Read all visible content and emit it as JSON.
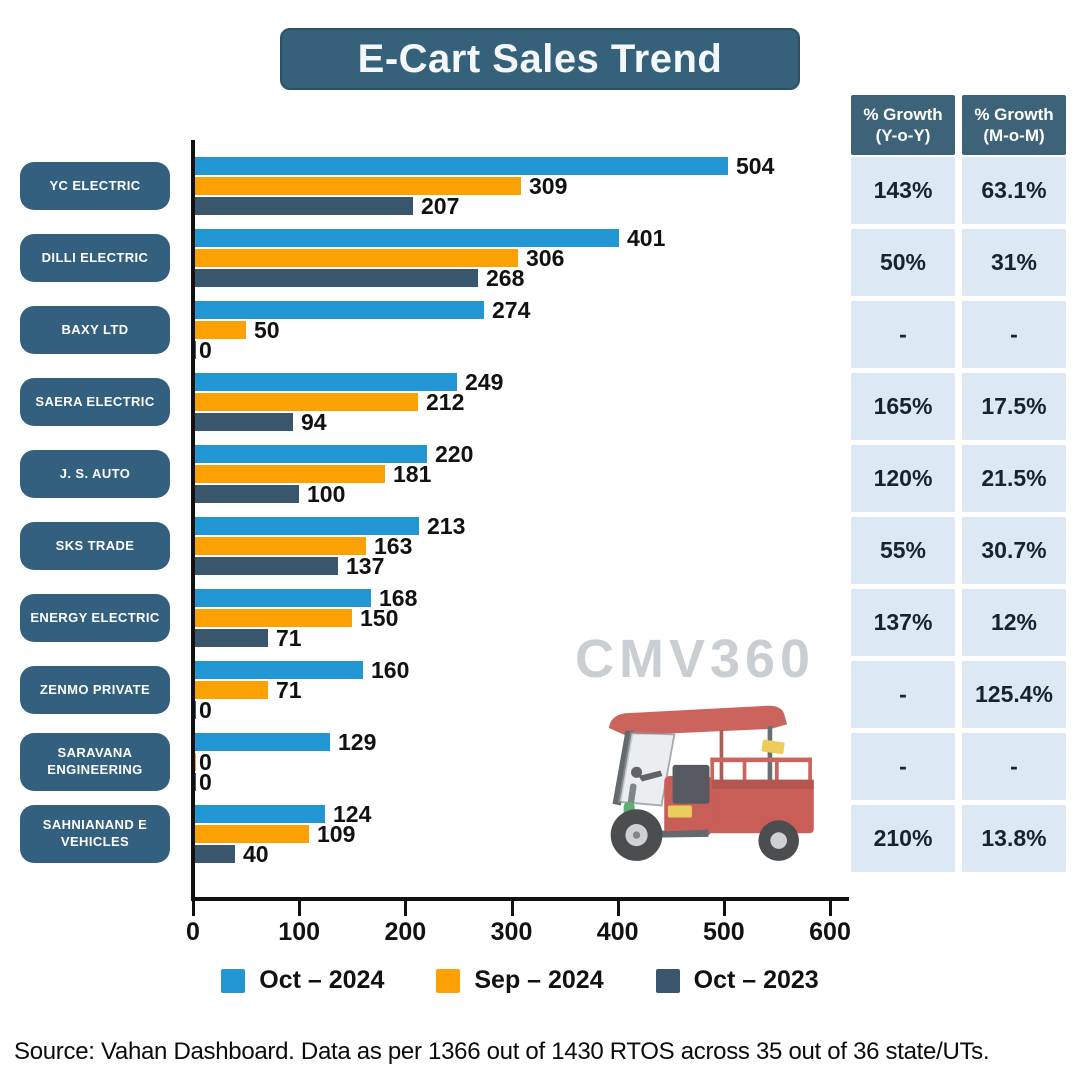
{
  "title": "E-Cart Sales Trend",
  "watermark": "CMV360",
  "source_text": "Source: Vahan Dashboard. Data as per 1366 out of 1430 RTOS across 35 out of 36 state/UTs.",
  "colors": {
    "title_bg": "#35617b",
    "pill_bg": "#33607e",
    "table_header_bg": "#3c6377",
    "table_cell_bg": "#dce9f5",
    "axis": "#111111",
    "watermark": "#c9ced3",
    "oct_2024_blue": "#2196d3",
    "sep_2024_orange": "#fba104",
    "oct_2023_slate": "#3a566c"
  },
  "table": {
    "header_yoy": "% Growth\n(Y-o-Y)",
    "header_mom": "% Growth\n(M-o-M)"
  },
  "chart_data": {
    "type": "bar",
    "orientation": "horizontal",
    "title": "E-Cart Sales Trend",
    "categories": [
      "YC ELECTRIC",
      "DILLI ELECTRIC",
      "BAXY LTD",
      "SAERA ELECTRIC",
      "J. S. AUTO",
      "SKS TRADE",
      "ENERGY ELECTRIC",
      "ZENMO PRIVATE",
      "SARAVANA ENGINEERING",
      "SAHNIANAND E VEHICLES"
    ],
    "series": [
      {
        "name": "Oct – 2024",
        "color": "#2196d3",
        "values": [
          504,
          401,
          274,
          249,
          220,
          213,
          168,
          160,
          129,
          124
        ]
      },
      {
        "name": "Sep – 2024",
        "color": "#fba104",
        "values": [
          309,
          306,
          50,
          212,
          181,
          163,
          150,
          71,
          0,
          109
        ]
      },
      {
        "name": "Oct – 2023",
        "color": "#3a566c",
        "values": [
          207,
          268,
          0,
          94,
          100,
          137,
          71,
          0,
          0,
          40
        ]
      }
    ],
    "xlim": [
      0,
      600
    ],
    "xticks": [
      0,
      100,
      200,
      300,
      400,
      500,
      600
    ],
    "growth_yoy": [
      "143%",
      "50%",
      "-",
      "165%",
      "120%",
      "55%",
      "137%",
      "-",
      "-",
      "210%"
    ],
    "growth_mom": [
      "63.1%",
      "31%",
      "-",
      "17.5%",
      "21.5%",
      "30.7%",
      "12%",
      "125.4%",
      "-",
      "13.8%"
    ],
    "legend_position": "bottom",
    "grid": false
  }
}
